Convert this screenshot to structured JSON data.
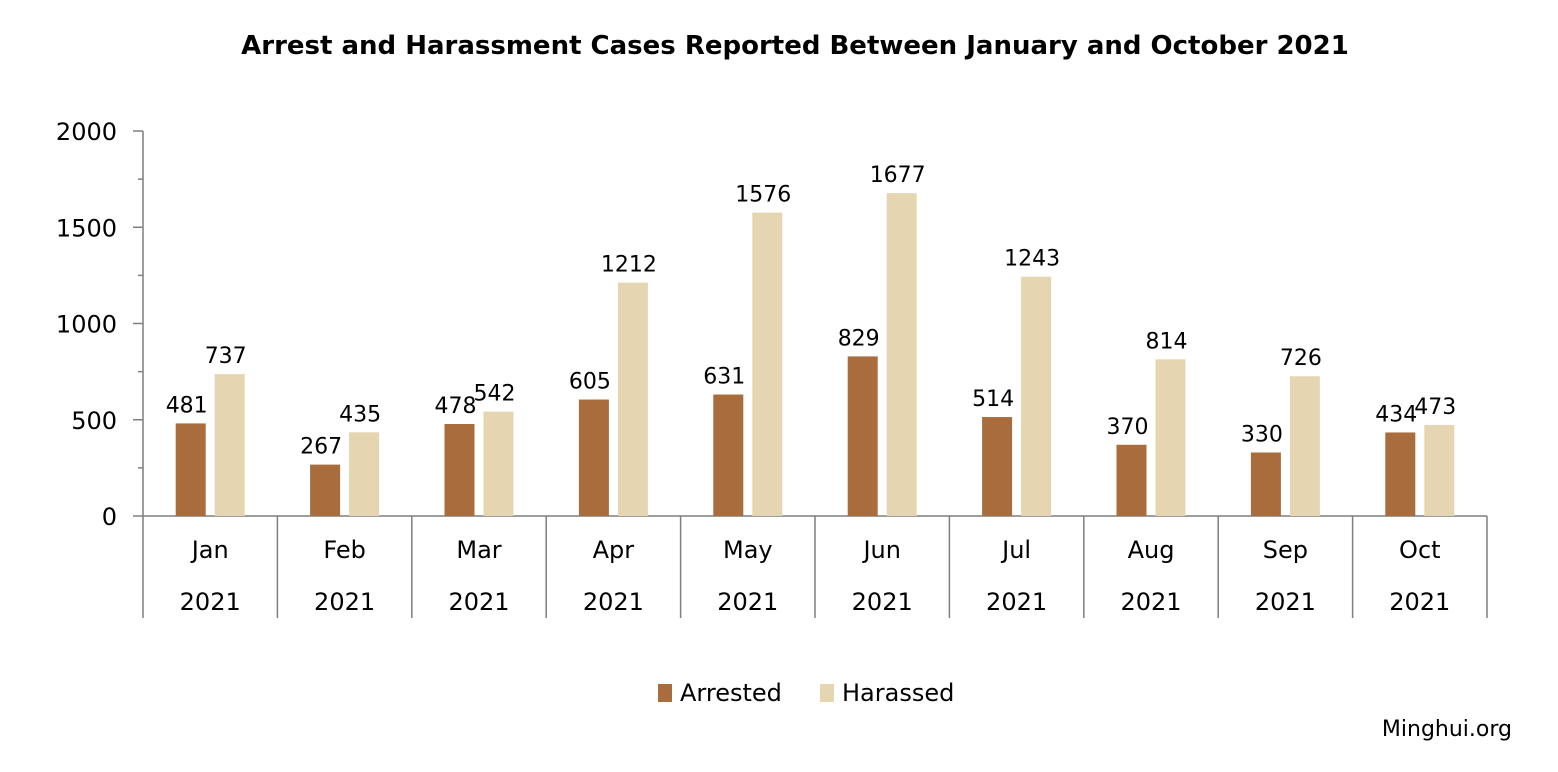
{
  "chart_data": {
    "type": "bar",
    "title": "Arrest and Harassment Cases Reported Between January and October 2021",
    "categories": [
      "Jan",
      "Feb",
      "Mar",
      "Apr",
      "May",
      "Jun",
      "Jul",
      "Aug",
      "Sep",
      "Oct"
    ],
    "category_year": "2021",
    "series": [
      {
        "name": "Arrested",
        "color": "#a86c3d",
        "values": [
          481,
          267,
          478,
          605,
          631,
          829,
          514,
          370,
          330,
          434
        ]
      },
      {
        "name": "Harassed",
        "color": "#e6d5b1",
        "values": [
          737,
          435,
          542,
          1212,
          1576,
          1677,
          1243,
          814,
          726,
          473
        ]
      }
    ],
    "ylim": [
      0,
      2000
    ],
    "yticks": [
      0,
      500,
      1000,
      1500,
      2000
    ],
    "xlabel": "",
    "ylabel": "",
    "grid": false,
    "legend_position": "bottom"
  },
  "source": "Minghui.org"
}
